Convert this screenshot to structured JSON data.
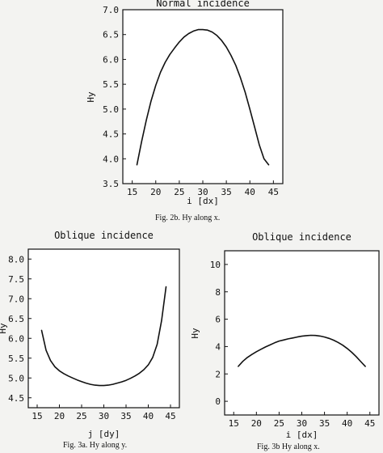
{
  "chart_data": [
    {
      "type": "line",
      "title": "Normal incidence",
      "xlabel": "i [dx]",
      "ylabel": "Hy",
      "caption": "Fig. 2b.  Hy along x.",
      "xlim": [
        13,
        47
      ],
      "ylim": [
        3.5,
        7.0
      ],
      "xticks": [
        15,
        20,
        25,
        30,
        35,
        40,
        45
      ],
      "yticks": [
        3.5,
        4.0,
        4.5,
        5.0,
        5.5,
        6.0,
        6.5,
        7.0
      ],
      "grid": false,
      "series": [
        {
          "x": [
            16,
            17,
            18,
            19,
            20,
            21,
            22,
            23,
            24,
            25,
            26,
            27,
            28,
            29,
            30,
            31,
            32,
            33,
            34,
            35,
            36,
            37,
            38,
            39,
            40,
            41,
            42,
            43,
            44
          ],
          "y": [
            3.88,
            4.35,
            4.78,
            5.16,
            5.48,
            5.74,
            5.94,
            6.1,
            6.23,
            6.35,
            6.45,
            6.52,
            6.57,
            6.6,
            6.6,
            6.59,
            6.55,
            6.48,
            6.38,
            6.25,
            6.08,
            5.88,
            5.63,
            5.34,
            5.0,
            4.64,
            4.28,
            4.0,
            3.88
          ]
        }
      ]
    },
    {
      "type": "line",
      "title": "Oblique incidence",
      "xlabel": "j [dy]",
      "ylabel": "Hy",
      "caption": "Fig. 3a.  Hy along y.",
      "xlim": [
        13,
        47
      ],
      "ylim": [
        4.25,
        8.25
      ],
      "xticks": [
        15,
        20,
        25,
        30,
        35,
        40,
        45
      ],
      "yticks": [
        4.5,
        5.0,
        5.5,
        6.0,
        6.5,
        7.0,
        7.5,
        8.0
      ],
      "grid": false,
      "series": [
        {
          "x": [
            16,
            17,
            18,
            19,
            20,
            21,
            22,
            23,
            24,
            25,
            26,
            27,
            28,
            29,
            30,
            31,
            32,
            33,
            34,
            35,
            36,
            37,
            38,
            39,
            40,
            41,
            42,
            43,
            44
          ],
          "y": [
            6.2,
            5.7,
            5.44,
            5.28,
            5.18,
            5.11,
            5.05,
            5.0,
            4.95,
            4.91,
            4.87,
            4.84,
            4.82,
            4.81,
            4.81,
            4.82,
            4.84,
            4.87,
            4.9,
            4.94,
            4.99,
            5.05,
            5.12,
            5.21,
            5.33,
            5.52,
            5.85,
            6.45,
            7.3
          ]
        }
      ]
    },
    {
      "type": "line",
      "title": "Oblique incidence",
      "xlabel": "i [dx]",
      "ylabel": "Hy",
      "caption": "Fig. 3b   Hy along x.",
      "xlim": [
        13,
        47
      ],
      "ylim": [
        -1,
        11
      ],
      "xticks": [
        15,
        20,
        25,
        30,
        35,
        40,
        45
      ],
      "yticks": [
        0,
        2,
        4,
        6,
        8,
        10
      ],
      "grid": false,
      "series": [
        {
          "x": [
            16,
            17,
            18,
            19,
            20,
            21,
            22,
            23,
            24,
            25,
            26,
            27,
            28,
            29,
            30,
            31,
            32,
            33,
            34,
            35,
            36,
            37,
            38,
            39,
            40,
            41,
            42,
            43,
            44
          ],
          "y": [
            2.55,
            2.92,
            3.2,
            3.42,
            3.62,
            3.8,
            3.97,
            4.12,
            4.27,
            4.4,
            4.48,
            4.56,
            4.63,
            4.7,
            4.76,
            4.8,
            4.82,
            4.81,
            4.77,
            4.7,
            4.6,
            4.47,
            4.3,
            4.1,
            3.86,
            3.58,
            3.26,
            2.9,
            2.55
          ]
        }
      ]
    }
  ]
}
